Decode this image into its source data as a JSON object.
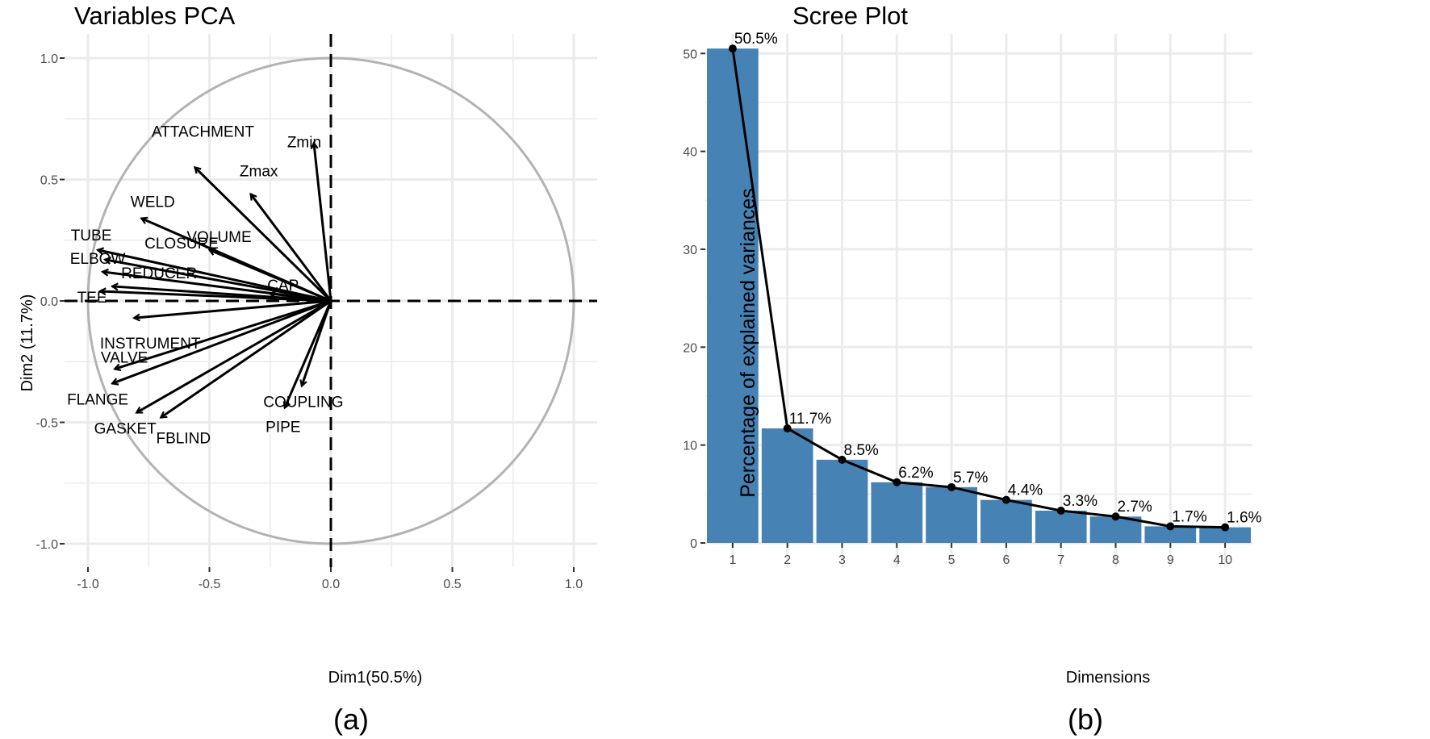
{
  "chart_data": [
    {
      "panel_label": "(a)",
      "type": "scatter",
      "subtype": "pca-variable-correlation-circle",
      "title": "Variables PCA",
      "xlabel": "Dim1(50.5%)",
      "ylabel": "Dim2 (11.7%)",
      "xlim": [
        -1.0,
        1.0
      ],
      "ylim": [
        -1.0,
        1.0
      ],
      "x_ticks": [
        -1.0,
        -0.5,
        0.0,
        0.5,
        1.0
      ],
      "x_tick_labels": [
        "-1.0",
        "-0.5",
        "0.0",
        "0.5",
        "1.0"
      ],
      "y_ticks": [
        -1.0,
        -0.5,
        0.0,
        0.5,
        1.0
      ],
      "y_tick_labels": [
        "-1.0",
        "-0.5",
        "0.0",
        "0.5",
        "1.0"
      ],
      "grid": true,
      "unit_circle": true,
      "variables": [
        {
          "name": "Zmin",
          "x": -0.07,
          "y": 0.65
        },
        {
          "name": "ATTACHMENT",
          "x": -0.56,
          "y": 0.55
        },
        {
          "name": "Zmax",
          "x": -0.33,
          "y": 0.44
        },
        {
          "name": "WELD",
          "x": -0.78,
          "y": 0.34
        },
        {
          "name": "VOLUME",
          "x": -0.5,
          "y": 0.21
        },
        {
          "name": "TUBE",
          "x": -0.96,
          "y": 0.21
        },
        {
          "name": "CLOSURE",
          "x": -0.93,
          "y": 0.17
        },
        {
          "name": "ELBOW",
          "x": -0.94,
          "y": 0.12
        },
        {
          "name": "CAP",
          "x": -0.25,
          "y": 0.03
        },
        {
          "name": "REDUCER",
          "x": -0.9,
          "y": 0.06
        },
        {
          "name": "TEE",
          "x": -0.95,
          "y": 0.04
        },
        {
          "name": "INSTRUMENT",
          "x": -0.81,
          "y": -0.07
        },
        {
          "name": "VALVE",
          "x": -0.89,
          "y": -0.28
        },
        {
          "name": "FLANGE",
          "x": -0.9,
          "y": -0.34
        },
        {
          "name": "GASKET",
          "x": -0.8,
          "y": -0.46
        },
        {
          "name": "FBLIND",
          "x": -0.7,
          "y": -0.48
        },
        {
          "name": "COUPLING",
          "x": -0.12,
          "y": -0.35
        },
        {
          "name": "PIPE",
          "x": -0.19,
          "y": -0.44
        }
      ]
    },
    {
      "panel_label": "(b)",
      "type": "bar",
      "title": "Scree Plot",
      "xlabel": "Dimensions",
      "ylabel": "Percentage of explained variances",
      "categories": [
        "1",
        "2",
        "3",
        "4",
        "5",
        "6",
        "7",
        "8",
        "9",
        "10"
      ],
      "values": [
        50.5,
        11.7,
        8.5,
        6.2,
        5.7,
        4.4,
        3.3,
        2.7,
        1.7,
        1.6
      ],
      "data_labels": [
        "50.5%",
        "11.7%",
        "8.5%",
        "6.2%",
        "5.7%",
        "4.4%",
        "3.3%",
        "2.7%",
        "1.7%",
        "1.6%"
      ],
      "overlay_line": true,
      "ylim": [
        0,
        52
      ],
      "y_ticks": [
        0,
        10,
        20,
        30,
        40,
        50
      ],
      "y_tick_labels": [
        "0",
        "10",
        "20",
        "30",
        "40",
        "50"
      ],
      "grid": true,
      "bar_color": "#4682B4",
      "line_color": "#000000"
    }
  ],
  "colors": {
    "background": "#ffffff",
    "grid": "#EBEBEB",
    "circle": "#B3B3B3",
    "arrow": "#000000",
    "bar": "#4682B4",
    "text": "#000000",
    "tick_text": "#4D4D4D"
  }
}
